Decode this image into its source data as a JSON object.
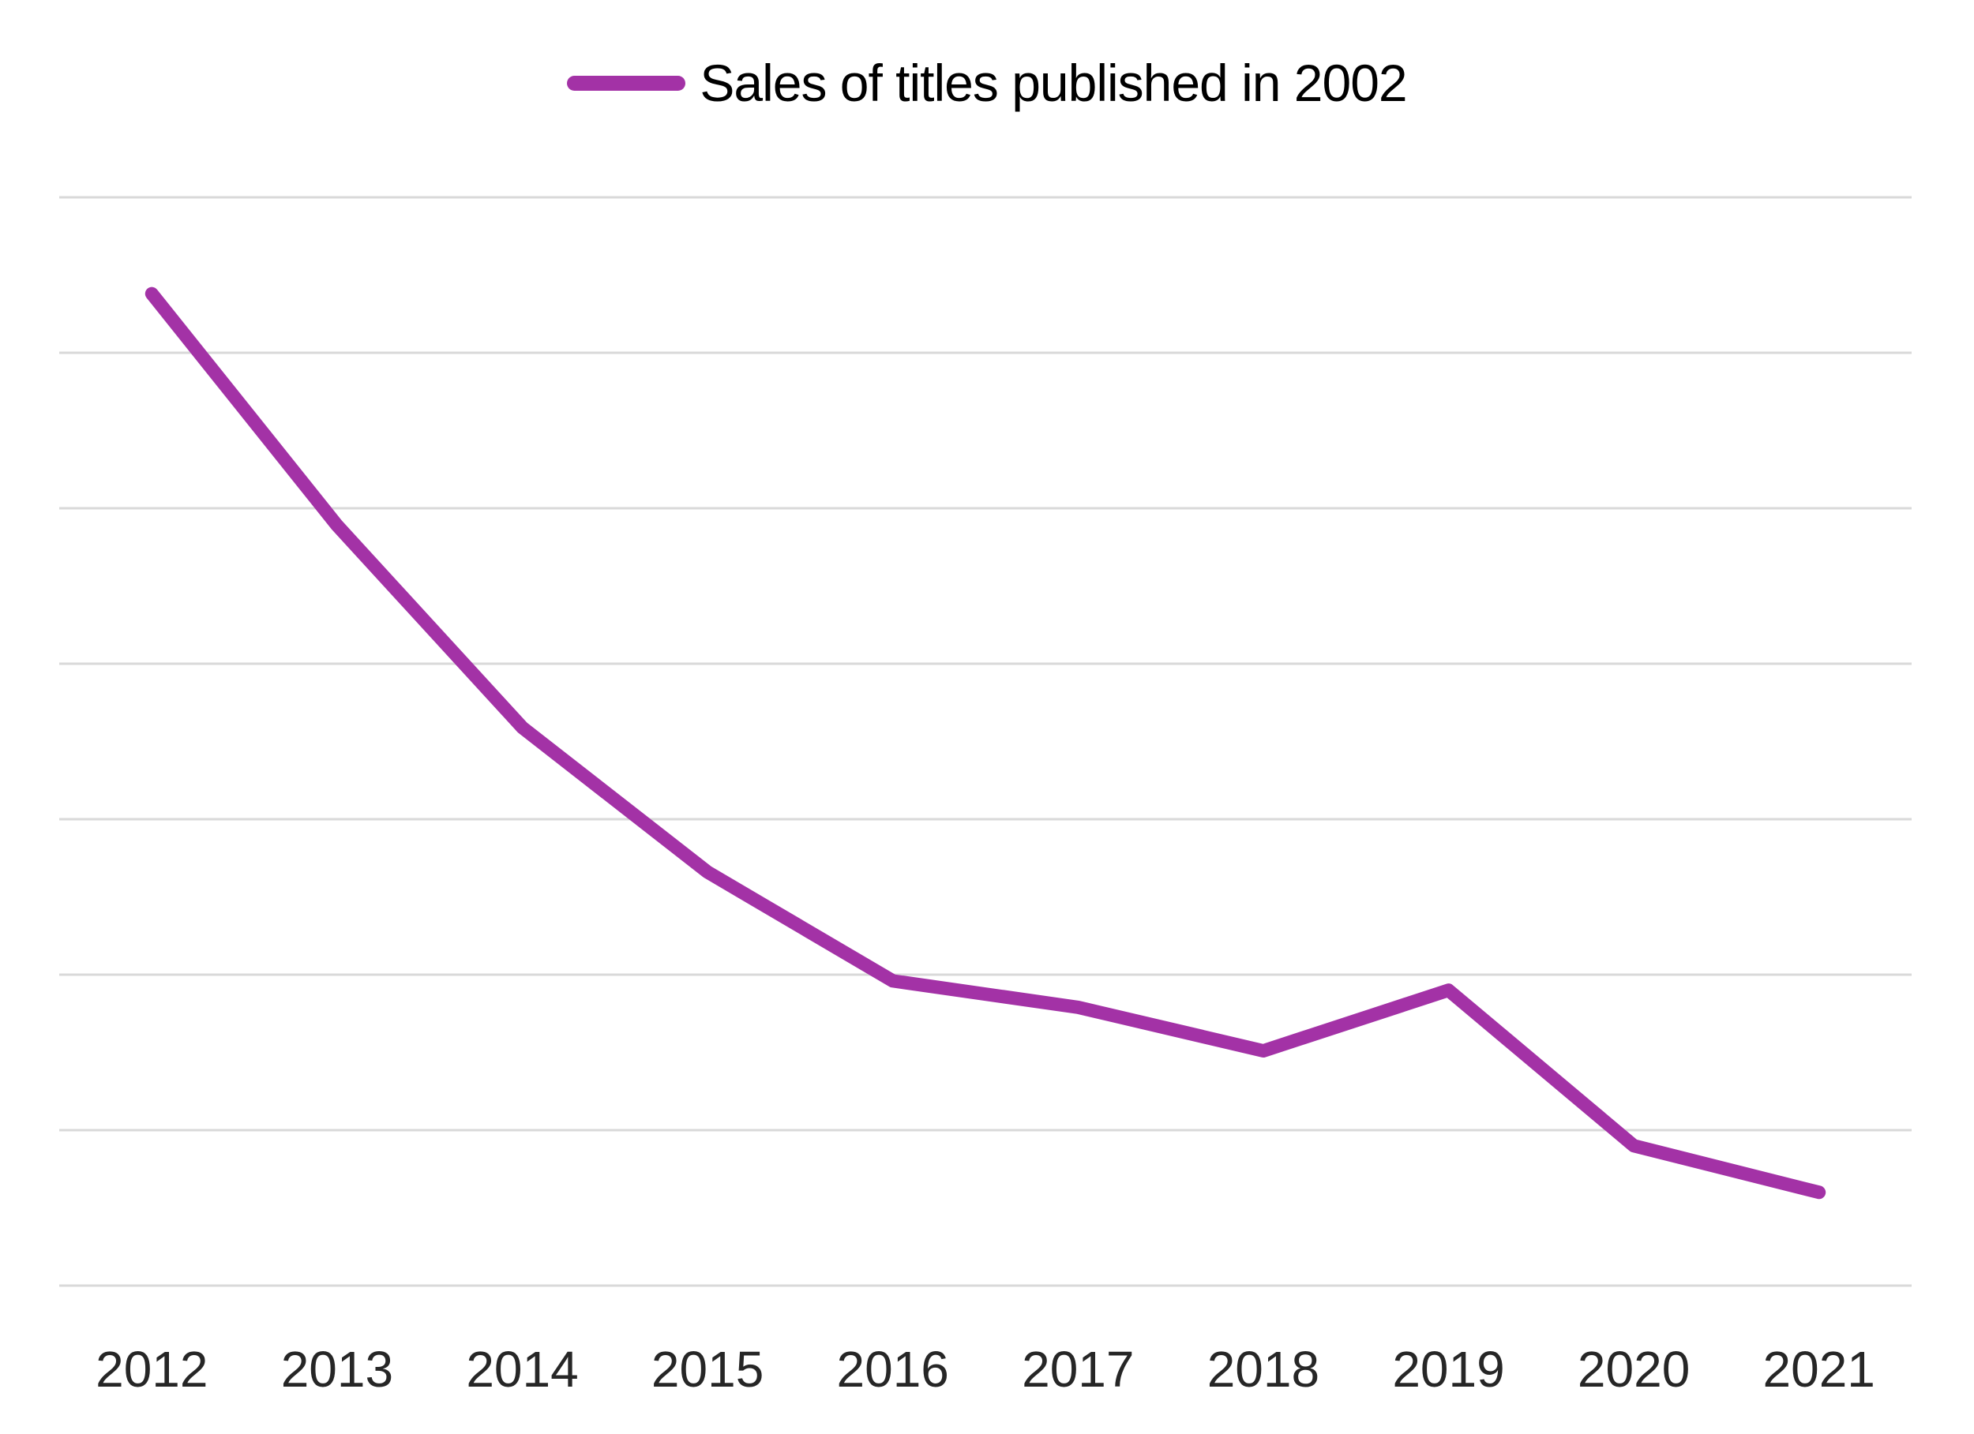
{
  "legend": {
    "label": "Sales of titles published in 2002"
  },
  "chart_data": {
    "type": "line",
    "title": "",
    "xlabel": "",
    "ylabel": "",
    "categories": [
      "2012",
      "2013",
      "2014",
      "2015",
      "2016",
      "2017",
      "2018",
      "2019",
      "2020",
      "2021"
    ],
    "series": [
      {
        "name": "Sales of titles published in 2002",
        "values": [
          6.38,
          4.89,
          3.59,
          2.66,
          1.96,
          1.79,
          1.51,
          1.9,
          0.9,
          0.6
        ]
      }
    ],
    "ylim": [
      0,
      7
    ],
    "y_axis_labels_visible": false,
    "y_values_unit": "gridline units (y axis is unlabeled; 8 horizontal gridlines, bottom gridline = 0, top gridline = 7)",
    "gridlines": {
      "horizontal_count": 8,
      "vertical": false
    },
    "legend_position": "top-center",
    "colors": {
      "series_line": "#A332A6",
      "gridline": "#D9D9D9",
      "axis_label_text": "#262626",
      "legend_text": "#000000",
      "background": "#FFFFFF"
    }
  }
}
